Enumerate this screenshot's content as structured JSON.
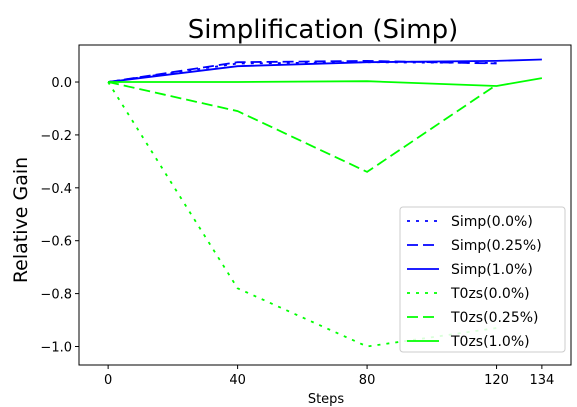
{
  "chart_data": {
    "type": "line",
    "title": "Simplification (Simp)",
    "xlabel": "Steps",
    "ylabel": "Relative Gain",
    "x_ticks": [
      0,
      40,
      80,
      120,
      134
    ],
    "y_ticks": [
      0.0,
      -0.2,
      -0.4,
      -0.6,
      -0.8,
      -1.0
    ],
    "y_tick_labels": [
      "0.0",
      "−0.2",
      "−0.4",
      "−0.6",
      "−0.8",
      "−1.0"
    ],
    "xlim": [
      -9,
      143
    ],
    "ylim": [
      -1.07,
      0.14
    ],
    "grid": false,
    "legend_position": "lower-right",
    "series": [
      {
        "name": "Simp(0.0%)",
        "color": "#0000ff",
        "dash": "dotted",
        "x": [
          0,
          40,
          80,
          120
        ],
        "y": [
          0.0,
          0.07,
          0.075,
          0.072
        ]
      },
      {
        "name": "Simp(0.25%)",
        "color": "#0000ff",
        "dash": "dashed",
        "x": [
          0,
          40,
          80,
          120
        ],
        "y": [
          0.0,
          0.075,
          0.08,
          0.07
        ]
      },
      {
        "name": "Simp(1.0%)",
        "color": "#0000ff",
        "dash": "solid",
        "x": [
          0,
          40,
          80,
          120,
          134
        ],
        "y": [
          0.0,
          0.06,
          0.075,
          0.08,
          0.085
        ]
      },
      {
        "name": "T0zs(0.0%)",
        "color": "#00ff00",
        "dash": "dotted",
        "x": [
          0,
          40,
          80,
          120
        ],
        "y": [
          0.0,
          -0.78,
          -1.0,
          -0.93
        ]
      },
      {
        "name": "T0zs(0.25%)",
        "color": "#00ff00",
        "dash": "dashed",
        "x": [
          0,
          40,
          80,
          120
        ],
        "y": [
          0.0,
          -0.11,
          -0.34,
          -0.01
        ]
      },
      {
        "name": "T0zs(1.0%)",
        "color": "#00ff00",
        "dash": "solid",
        "x": [
          0,
          40,
          80,
          120,
          134
        ],
        "y": [
          0.0,
          0.0,
          0.003,
          -0.015,
          0.015
        ]
      }
    ]
  }
}
